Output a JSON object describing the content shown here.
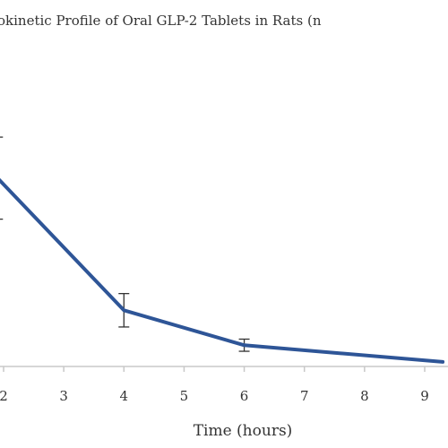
{
  "chart_data": {
    "type": "line",
    "title": "okinetic Profile of Oral GLP-2 Tablets in Rats (n",
    "xlabel": "Time (hours)",
    "ylabel": "",
    "xlim": [
      1.9,
      9.3
    ],
    "ylim": [
      0,
      1
    ],
    "x_ticks": [
      2,
      3,
      4,
      5,
      6,
      7,
      8,
      9
    ],
    "grid": false,
    "legend": "none",
    "series": [
      {
        "x": [
          1.9,
          4,
          6,
          9.3
        ],
        "y": [
          0.62,
          0.185,
          0.07,
          0.015
        ],
        "error": [
          0.135,
          0.055,
          0.02,
          0
        ],
        "color": "#2e5597"
      }
    ]
  }
}
